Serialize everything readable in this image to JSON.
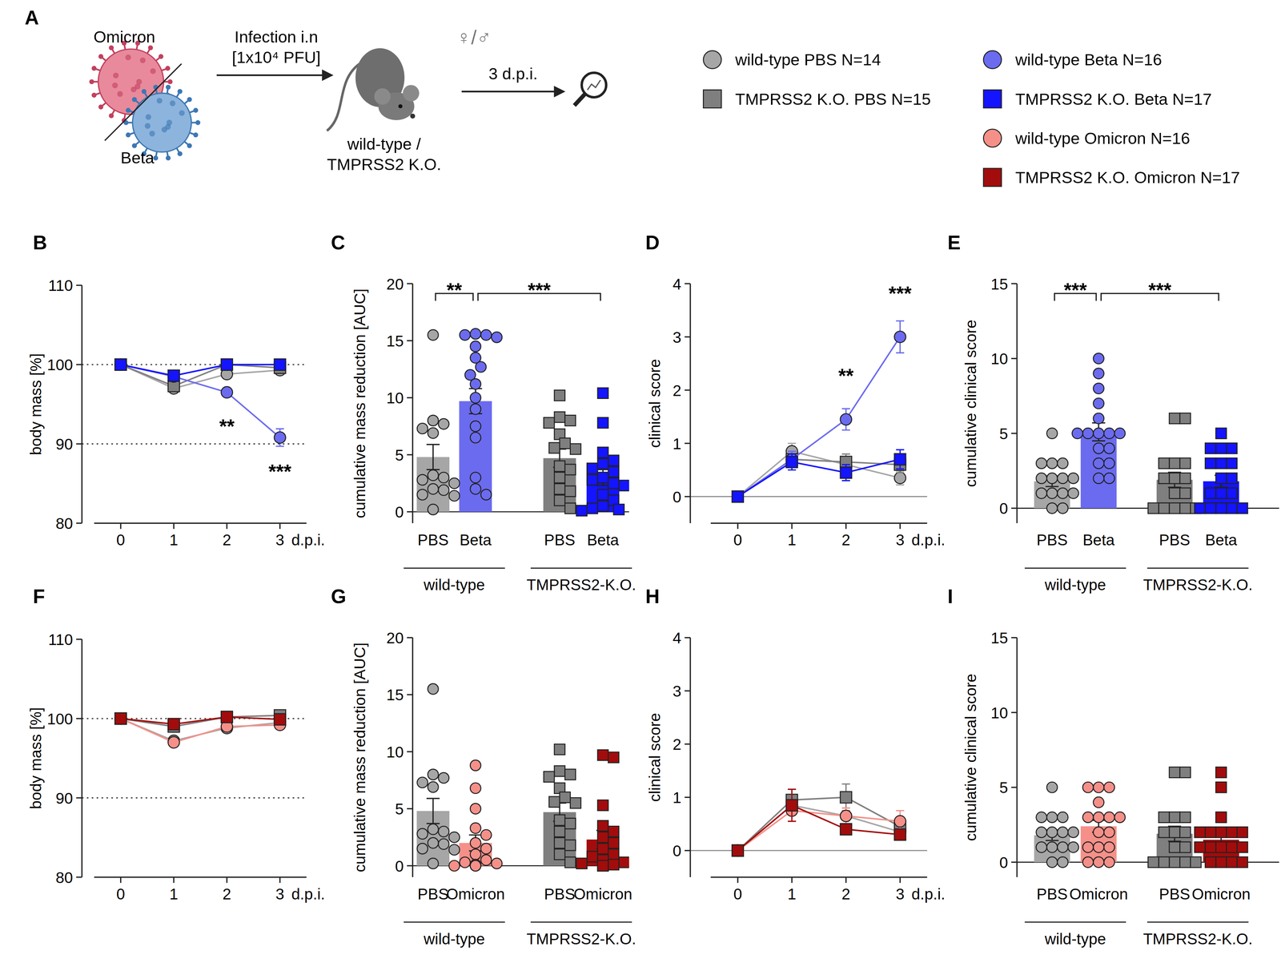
{
  "diagram": {
    "title": "A",
    "viruses": [
      "Omicron",
      "Beta"
    ],
    "route": "Infection i.n",
    "dose": "[1x10⁴ PFU]",
    "sex": "♀/♂",
    "mice": [
      "wild-type /",
      "TMPRSS2 K.O."
    ],
    "timepoint": "3 d.p.i.",
    "legend": [
      {
        "name": "wild-type PBS N=14",
        "color": "#a6a6a6",
        "marker": "circle"
      },
      {
        "name": "TMPRSS2 K.O. PBS N=15",
        "color": "#7f7f7f",
        "marker": "square"
      },
      {
        "name": "wild-type Beta N=16",
        "color": "#6b6bef",
        "marker": "circle"
      },
      {
        "name": "TMPRSS2 K.O. Beta N=17",
        "color": "#1414ff",
        "marker": "square"
      },
      {
        "name": "wild-type Omicron N=16",
        "color": "#f59089",
        "marker": "circle"
      },
      {
        "name": "TMPRSS2 K.O. Omicron N=17",
        "color": "#a30c0c",
        "marker": "square"
      }
    ]
  },
  "chart_data": [
    {
      "title": "B",
      "type": "line",
      "x": [
        0,
        1,
        2,
        3
      ],
      "xlim": [
        -0.5,
        3.5
      ],
      "xticks": [
        0,
        1,
        2,
        3
      ],
      "x_label": "d.p.i.",
      "y_label": "body mass [%]",
      "ylim": [
        80,
        110
      ],
      "yticks": [
        80,
        90,
        100,
        110
      ],
      "hlines": [
        90,
        100
      ],
      "series": [
        {
          "color": "#a6a6a6",
          "marker": "circle",
          "values": [
            100,
            97,
            98.8,
            99.3
          ],
          "errors": [
            0,
            0.4,
            0.4,
            0.4
          ]
        },
        {
          "color": "#7f7f7f",
          "marker": "square",
          "values": [
            100,
            97.3,
            100,
            99.6
          ],
          "errors": [
            0,
            0.4,
            0.3,
            0.3
          ]
        },
        {
          "color": "#6b6bef",
          "marker": "circle",
          "values": [
            100,
            98.5,
            96.5,
            90.8
          ],
          "errors": [
            0,
            0.4,
            0.5,
            1.1
          ],
          "annotations": [
            null,
            null,
            "**",
            "***"
          ]
        },
        {
          "color": "#1414ff",
          "marker": "square",
          "values": [
            100,
            98.6,
            100,
            100
          ],
          "errors": [
            0,
            0.3,
            0.3,
            0.3
          ]
        }
      ]
    },
    {
      "title": "C",
      "type": "bar",
      "categories": [
        "PBS",
        "Beta",
        "PBS",
        "Beta"
      ],
      "groups": [
        {
          "label": "wild-type",
          "marker": "circle"
        },
        {
          "label": "TMPRSS2-K.O.",
          "marker": "square"
        }
      ],
      "y_label": "cumulative mass reduction [AUC]",
      "ylim": [
        -1,
        20
      ],
      "yticks": [
        0,
        5,
        10,
        15,
        20
      ],
      "hlines": [
        0
      ],
      "colors": [
        "#a6a6a6",
        "#6b6bef",
        "#7f7f7f",
        "#1414ff"
      ],
      "values": [
        4.8,
        9.7,
        4.7,
        3.0
      ],
      "errors": [
        1.1,
        1.1,
        0.8,
        0.7
      ],
      "points": [
        [
          15.5,
          8.0,
          7.7,
          7.3,
          6.9,
          3.2,
          3.0,
          2.8,
          2.5,
          2.0,
          1.9,
          1.5,
          1.4,
          0.2
        ],
        [
          15.6,
          15.5,
          15.5,
          15.3,
          14.5,
          13.5,
          12.7,
          12.0,
          11.2,
          10.0,
          9.0,
          7.5,
          6.5,
          3.0,
          2.0,
          1.5
        ],
        [
          10.2,
          8.3,
          8.0,
          7.8,
          6.8,
          6.0,
          5.6,
          5.5,
          4.0,
          3.7,
          3.0,
          2.0,
          1.8,
          1.0,
          0.3
        ],
        [
          10.4,
          7.8,
          5.2,
          4.5,
          4.2,
          3.8,
          3.5,
          3.0,
          2.8,
          2.5,
          2.3,
          1.5,
          1.0,
          0.5,
          0.3,
          0.2,
          0.1
        ]
      ],
      "comparisons": [
        {
          "from": 0,
          "to": 1,
          "label": "**"
        },
        {
          "from": 1,
          "to": 3,
          "label": "***"
        }
      ]
    },
    {
      "title": "D",
      "type": "line",
      "x": [
        0,
        1,
        2,
        3
      ],
      "xlim": [
        -0.5,
        3.5
      ],
      "xticks": [
        0,
        1,
        2,
        3
      ],
      "x_label": "d.p.i.",
      "y_label": "clinical score",
      "ylim": [
        -0.5,
        4
      ],
      "yticks": [
        0,
        1,
        2,
        3,
        4
      ],
      "hlines": [
        0
      ],
      "series": [
        {
          "color": "#a6a6a6",
          "marker": "circle",
          "values": [
            0,
            0.85,
            0.6,
            0.35
          ],
          "errors": [
            0,
            0.15,
            0.13,
            0.13
          ]
        },
        {
          "color": "#7f7f7f",
          "marker": "square",
          "values": [
            0,
            0.7,
            0.65,
            0.6
          ],
          "errors": [
            0,
            0.15,
            0.15,
            0.15
          ]
        },
        {
          "color": "#6b6bef",
          "marker": "circle",
          "values": [
            0,
            0.7,
            1.45,
            3.0
          ],
          "errors": [
            0,
            0.15,
            0.2,
            0.3
          ],
          "annotations": [
            null,
            null,
            "**",
            "***"
          ]
        },
        {
          "color": "#1414ff",
          "marker": "square",
          "values": [
            0,
            0.65,
            0.45,
            0.7
          ],
          "errors": [
            0,
            0.15,
            0.15,
            0.18
          ]
        }
      ]
    },
    {
      "title": "E",
      "type": "bar",
      "categories": [
        "PBS",
        "Beta",
        "PBS",
        "Beta"
      ],
      "groups": [
        {
          "label": "wild-type",
          "marker": "circle"
        },
        {
          "label": "TMPRSS2-K.O.",
          "marker": "square"
        }
      ],
      "y_label": "cumulative clinical score",
      "ylim": [
        -1,
        15
      ],
      "yticks": [
        0,
        5,
        10,
        15
      ],
      "hlines": [
        0
      ],
      "colors": [
        "#a6a6a6",
        "#6b6bef",
        "#7f7f7f",
        "#1414ff"
      ],
      "values": [
        1.8,
        5.1,
        1.9,
        1.8
      ],
      "errors": [
        0.35,
        0.6,
        0.5,
        0.4
      ],
      "points": [
        [
          5,
          3,
          3,
          3,
          2,
          2,
          2,
          2,
          1,
          1,
          1,
          1,
          0,
          0
        ],
        [
          10,
          9,
          8,
          7,
          6,
          5,
          5,
          5,
          5,
          5,
          4,
          4,
          3,
          3,
          2,
          2
        ],
        [
          6,
          6,
          3,
          3,
          3,
          2,
          2,
          2,
          1,
          1,
          0,
          0,
          0,
          0,
          0
        ],
        [
          5,
          4,
          4,
          4,
          3,
          3,
          3,
          2,
          2,
          1,
          1,
          1,
          0,
          0,
          0,
          0,
          0
        ]
      ],
      "comparisons": [
        {
          "from": 0,
          "to": 1,
          "label": "***"
        },
        {
          "from": 1,
          "to": 3,
          "label": "***"
        }
      ]
    },
    {
      "title": "F",
      "type": "line",
      "x": [
        0,
        1,
        2,
        3
      ],
      "xlim": [
        -0.5,
        3.5
      ],
      "xticks": [
        0,
        1,
        2,
        3
      ],
      "x_label": "d.p.i.",
      "y_label": "body mass [%]",
      "ylim": [
        80,
        110
      ],
      "yticks": [
        80,
        90,
        100,
        110
      ],
      "hlines": [
        90,
        100
      ],
      "series": [
        {
          "color": "#a6a6a6",
          "marker": "circle",
          "values": [
            100,
            97.2,
            98.8,
            99.5
          ],
          "errors": [
            0,
            0.3,
            0.3,
            0.3
          ]
        },
        {
          "color": "#7f7f7f",
          "marker": "square",
          "values": [
            100,
            99,
            100.2,
            100.4
          ],
          "errors": [
            0,
            0.3,
            0.3,
            0.3
          ]
        },
        {
          "color": "#f59089",
          "marker": "circle",
          "values": [
            100,
            97,
            99,
            99.2
          ],
          "errors": [
            0,
            0.3,
            0.3,
            0.3
          ]
        },
        {
          "color": "#a30c0c",
          "marker": "square",
          "values": [
            100,
            99.3,
            100.2,
            99.9
          ],
          "errors": [
            0,
            0.3,
            0.3,
            0.3
          ]
        }
      ]
    },
    {
      "title": "G",
      "type": "bar",
      "categories": [
        "PBS",
        "Omicron",
        "PBS",
        "Omicron"
      ],
      "groups": [
        {
          "label": "wild-type",
          "marker": "circle"
        },
        {
          "label": "TMPRSS2-K.O.",
          "marker": "square"
        }
      ],
      "y_label": "cumulative mass reduction [AUC]",
      "ylim": [
        -1,
        20
      ],
      "yticks": [
        0,
        5,
        10,
        15,
        20
      ],
      "hlines": [
        0
      ],
      "colors": [
        "#a6a6a6",
        "#f59089",
        "#7f7f7f",
        "#a30c0c"
      ],
      "values": [
        4.8,
        2.0,
        4.7,
        2.3
      ],
      "errors": [
        1.1,
        0.7,
        0.8,
        0.8
      ],
      "points": [
        [
          15.5,
          8.0,
          7.7,
          7.3,
          6.9,
          3.2,
          3.0,
          2.8,
          2.5,
          2.0,
          1.9,
          1.5,
          1.4,
          0.2
        ],
        [
          8.8,
          6.8,
          5.0,
          3.3,
          2.7,
          2.0,
          1.5,
          1.0,
          0.5,
          0.3,
          0.2,
          0.1,
          0,
          0,
          0,
          0
        ],
        [
          10.2,
          8.3,
          8.0,
          7.8,
          6.8,
          6.0,
          5.6,
          5.5,
          4.0,
          3.7,
          3.0,
          2.0,
          1.8,
          1.0,
          0.3
        ],
        [
          9.7,
          9.5,
          5.3,
          3.5,
          3.0,
          2.5,
          2.0,
          1.5,
          1.0,
          0.8,
          0.5,
          0.3,
          0.2,
          0.1,
          0,
          0,
          0
        ]
      ]
    },
    {
      "title": "H",
      "type": "line",
      "x": [
        0,
        1,
        2,
        3
      ],
      "xlim": [
        -0.5,
        3.5
      ],
      "xticks": [
        0,
        1,
        2,
        3
      ],
      "x_label": "d.p.i.",
      "y_label": "clinical score",
      "ylim": [
        -0.5,
        4
      ],
      "yticks": [
        0,
        1,
        2,
        3,
        4
      ],
      "hlines": [
        0
      ],
      "series": [
        {
          "color": "#a6a6a6",
          "marker": "circle",
          "values": [
            0,
            0.85,
            0.65,
            0.35
          ],
          "errors": [
            0,
            0.15,
            0.15,
            0.1
          ]
        },
        {
          "color": "#7f7f7f",
          "marker": "square",
          "values": [
            0,
            0.95,
            1.0,
            0.45
          ],
          "errors": [
            0,
            0.2,
            0.25,
            0.15
          ]
        },
        {
          "color": "#f59089",
          "marker": "circle",
          "values": [
            0,
            0.75,
            0.65,
            0.55
          ],
          "errors": [
            0,
            0.2,
            0.15,
            0.2
          ]
        },
        {
          "color": "#a30c0c",
          "marker": "square",
          "values": [
            0,
            0.85,
            0.4,
            0.3
          ],
          "errors": [
            0,
            0.3,
            0.1,
            0.1
          ]
        }
      ]
    },
    {
      "title": "I",
      "type": "bar",
      "categories": [
        "PBS",
        "Omicron",
        "PBS",
        "Omicron"
      ],
      "groups": [
        {
          "label": "wild-type",
          "marker": "circle"
        },
        {
          "label": "TMPRSS2-K.O.",
          "marker": "square"
        }
      ],
      "y_label": "cumulative clinical score",
      "ylim": [
        -1,
        15
      ],
      "yticks": [
        0,
        5,
        10,
        15
      ],
      "hlines": [
        0
      ],
      "colors": [
        "#a6a6a6",
        "#f59089",
        "#7f7f7f",
        "#a30c0c"
      ],
      "values": [
        1.8,
        2.4,
        1.9,
        1.5
      ],
      "errors": [
        0.35,
        0.4,
        0.5,
        0.4
      ],
      "points": [
        [
          5,
          3,
          3,
          3,
          2,
          2,
          2,
          2,
          1,
          1,
          1,
          1,
          0,
          0
        ],
        [
          5,
          5,
          5,
          4,
          3,
          3,
          3,
          3,
          2,
          2,
          1,
          1,
          1,
          0,
          0,
          0
        ],
        [
          6,
          6,
          3,
          3,
          3,
          2,
          2,
          2,
          1,
          1,
          0,
          0,
          0,
          0,
          0
        ],
        [
          6,
          5,
          3,
          2,
          2,
          2,
          2,
          2,
          1,
          1,
          1,
          1,
          1,
          0,
          0,
          0,
          0
        ]
      ]
    }
  ]
}
